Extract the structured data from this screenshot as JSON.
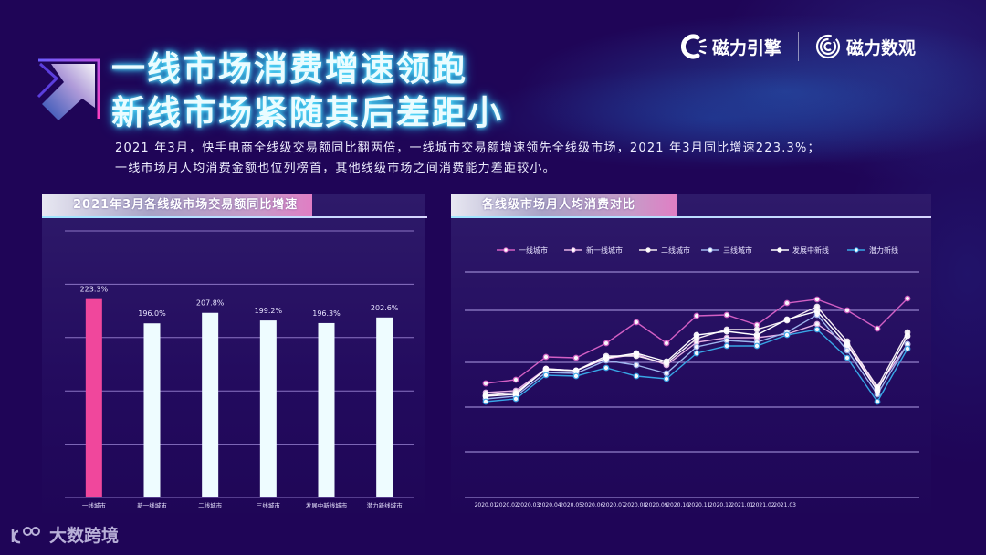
{
  "header": {
    "title_line1": "一线市场消费增速领跑",
    "title_line2": "新线市场紧随其后差距小",
    "logos": [
      {
        "icon": "cili-engine-logo-icon",
        "label": "磁力引擎"
      },
      {
        "icon": "cili-shuguan-logo-icon",
        "label": "磁力数观"
      }
    ]
  },
  "description": {
    "line1": "2021 年3月，快手电商全线级交易额同比翻两倍，一线城市交易额增速领先全线级市场，2021 年3月同比增速223.3%；",
    "line2": "一线市场月人均消费金额也位列榜首，其他线级市场之间消费能力差距较小。"
  },
  "colors": {
    "background": "#1f0557",
    "accent_pink": "#f0479c",
    "bar_white": "#eefcff",
    "title_glow": "#33c6f0"
  },
  "footer": {
    "logo_icon": "100-logo-icon",
    "label": "大数跨境"
  },
  "chart_data": [
    {
      "type": "bar",
      "title": "2021年3月各线级市场交易额同比增速",
      "categories": [
        "一线城市",
        "新一线城市",
        "二线城市",
        "三线城市",
        "发展中新线城市",
        "潜力新线城市"
      ],
      "values": [
        223.3,
        196.0,
        207.8,
        199.2,
        196.3,
        202.6
      ],
      "value_labels": [
        "223.3%",
        "196.0%",
        "207.8%",
        "199.2%",
        "196.3%",
        "202.6%"
      ],
      "colors": [
        "#f0479c",
        "#eefcff",
        "#eefcff",
        "#eefcff",
        "#eefcff",
        "#eefcff"
      ],
      "ylabel": "",
      "xlabel": "",
      "ylim": [
        0,
        300
      ],
      "grid": true,
      "gridlines": 5
    },
    {
      "type": "line",
      "title": "各线级市场月人均消费对比",
      "x": [
        "2020.01",
        "2020.02",
        "2020.03",
        "2020.04",
        "2020.05",
        "2020.06",
        "2020.07",
        "2020.08",
        "2020.09",
        "2020.10",
        "2020.11",
        "2020.12",
        "2021.01",
        "2021.02",
        "2021.03"
      ],
      "ylim": [
        0,
        500
      ],
      "grid": true,
      "legend_position": "top",
      "yaxis_labels_visible": false,
      "series": [
        {
          "name": "一线城市",
          "color": "#d35fc4",
          "values": [
            250,
            258,
            308,
            306,
            338,
            384,
            338,
            398,
            400,
            378,
            426,
            434,
            410,
            370,
            436
          ]
        },
        {
          "name": "新一线城市",
          "color": "#e6b3e6",
          "values": [
            230,
            234,
            282,
            278,
            304,
            314,
            290,
            340,
            350,
            350,
            358,
            380,
            336,
            240,
            336
          ]
        },
        {
          "name": "二线城市",
          "color": "#f4ecf2",
          "values": [
            224,
            230,
            280,
            278,
            310,
            310,
            294,
            348,
            368,
            368,
            388,
            418,
            342,
            242,
            362
          ]
        },
        {
          "name": "三线城市",
          "color": "#9fb6ee",
          "values": [
            216,
            222,
            274,
            272,
            300,
            290,
            272,
            330,
            344,
            340,
            362,
            400,
            322,
            226,
            336
          ]
        },
        {
          "name": "发展中新线",
          "color": "#ffffff",
          "values": [
            222,
            226,
            282,
            278,
            306,
            316,
            298,
            356,
            364,
            356,
            390,
            408,
            334,
            234,
            354
          ]
        },
        {
          "name": "潜力新线",
          "color": "#38a6e6",
          "values": [
            210,
            216,
            268,
            266,
            284,
            266,
            260,
            316,
            332,
            332,
            356,
            368,
            306,
            210,
            326
          ]
        }
      ]
    }
  ]
}
